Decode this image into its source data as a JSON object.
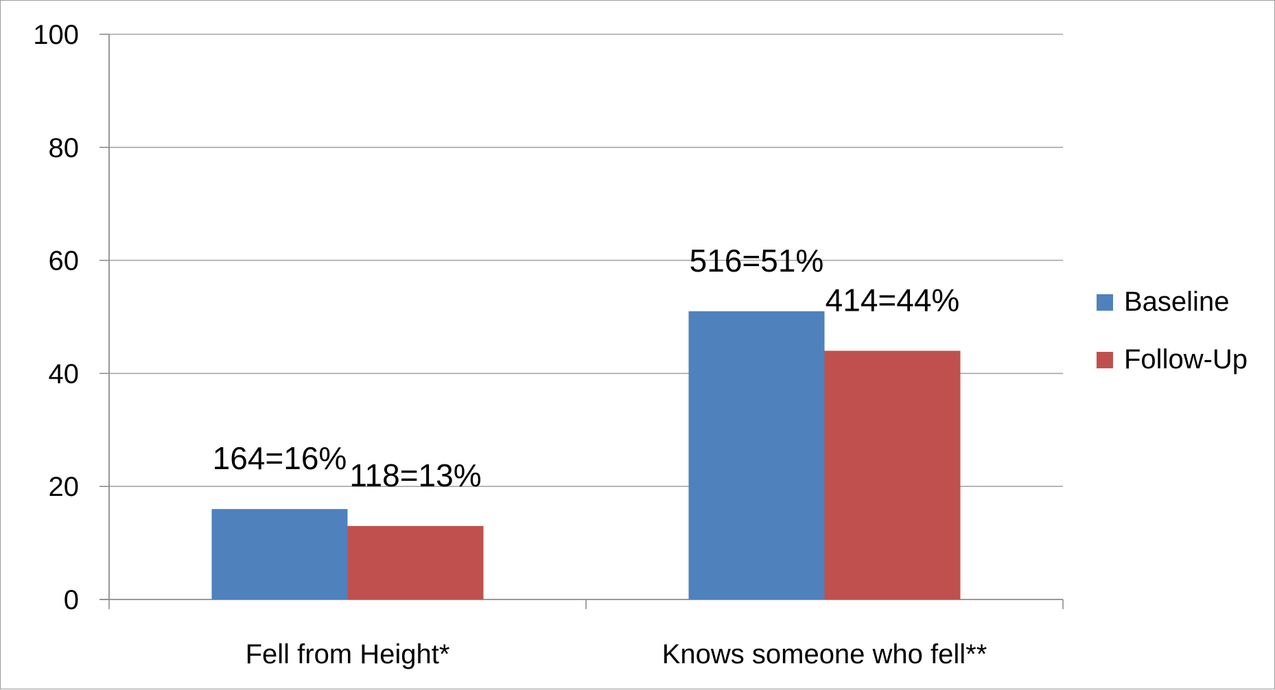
{
  "chart_data": {
    "type": "bar",
    "categories": [
      "Fell from Height*",
      "Knows someone who fell**"
    ],
    "series": [
      {
        "name": "Baseline",
        "color": "#4F81BD",
        "values": [
          16,
          51
        ],
        "labels": [
          "164=16%",
          "516=51%"
        ]
      },
      {
        "name": "Follow-Up",
        "color": "#C0504D",
        "values": [
          13,
          44
        ],
        "labels": [
          "118=13%",
          "414=44%"
        ]
      }
    ],
    "ylim": [
      0,
      100
    ],
    "yticks": [
      0,
      20,
      40,
      60,
      80,
      100
    ],
    "grid": true,
    "legend_position": "right"
  }
}
